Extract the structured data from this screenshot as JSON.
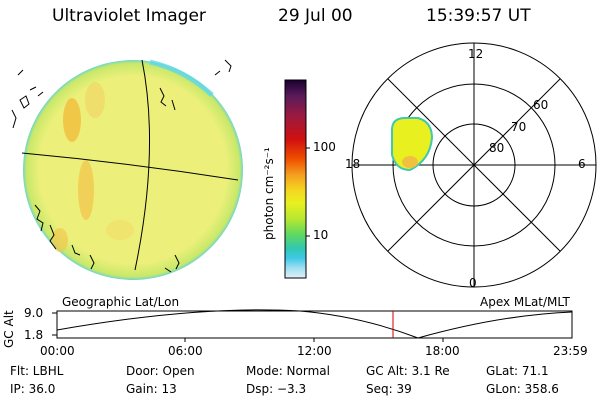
{
  "header": {
    "instrument": "Ultraviolet Imager",
    "date": "29 Jul 00",
    "time": "15:39:57 UT"
  },
  "colorbar": {
    "unit_label": "photon cm⁻²s⁻¹",
    "tick_100": "100",
    "tick_10": "10",
    "colors": [
      "#1a0030",
      "#5a1a5a",
      "#9a1a40",
      "#d01010",
      "#f05000",
      "#f4a020",
      "#f4d820",
      "#e8f020",
      "#b8e830",
      "#60d860",
      "#30c8b0",
      "#40c8e8",
      "#a0e0f0",
      "#e0f0f8"
    ]
  },
  "left_image": {
    "label": "Geographic Lat/Lon",
    "fill_color": "#ecf07a",
    "edge_color": "#6fd6c8"
  },
  "polar_plot": {
    "label": "Apex MLat/MLT",
    "mlt_labels": {
      "top": "12",
      "left": "18",
      "right": "6",
      "bottom": "0"
    },
    "mlat_labels": [
      "60",
      "70",
      "80"
    ]
  },
  "altitude_strip": {
    "axis_label": "GC Alt",
    "ticks": [
      "9.0",
      "1.8"
    ],
    "time_ticks": [
      "00:00",
      "06:00",
      "12:00",
      "18:00",
      "23:59"
    ],
    "current_marker_color": "#cc0000"
  },
  "footer": {
    "filter": "Flt: LBHL",
    "ip": "IP: 36.0",
    "door": "Door: Open",
    "gain": "Gain: 13",
    "mode": "Mode: Normal",
    "dsp": "Dsp:  −3.3",
    "gc_alt": "GC Alt: 3.1 Re",
    "seq": "Seq: 39",
    "glat": "GLat:  71.1",
    "glon": "GLon: 358.6"
  }
}
